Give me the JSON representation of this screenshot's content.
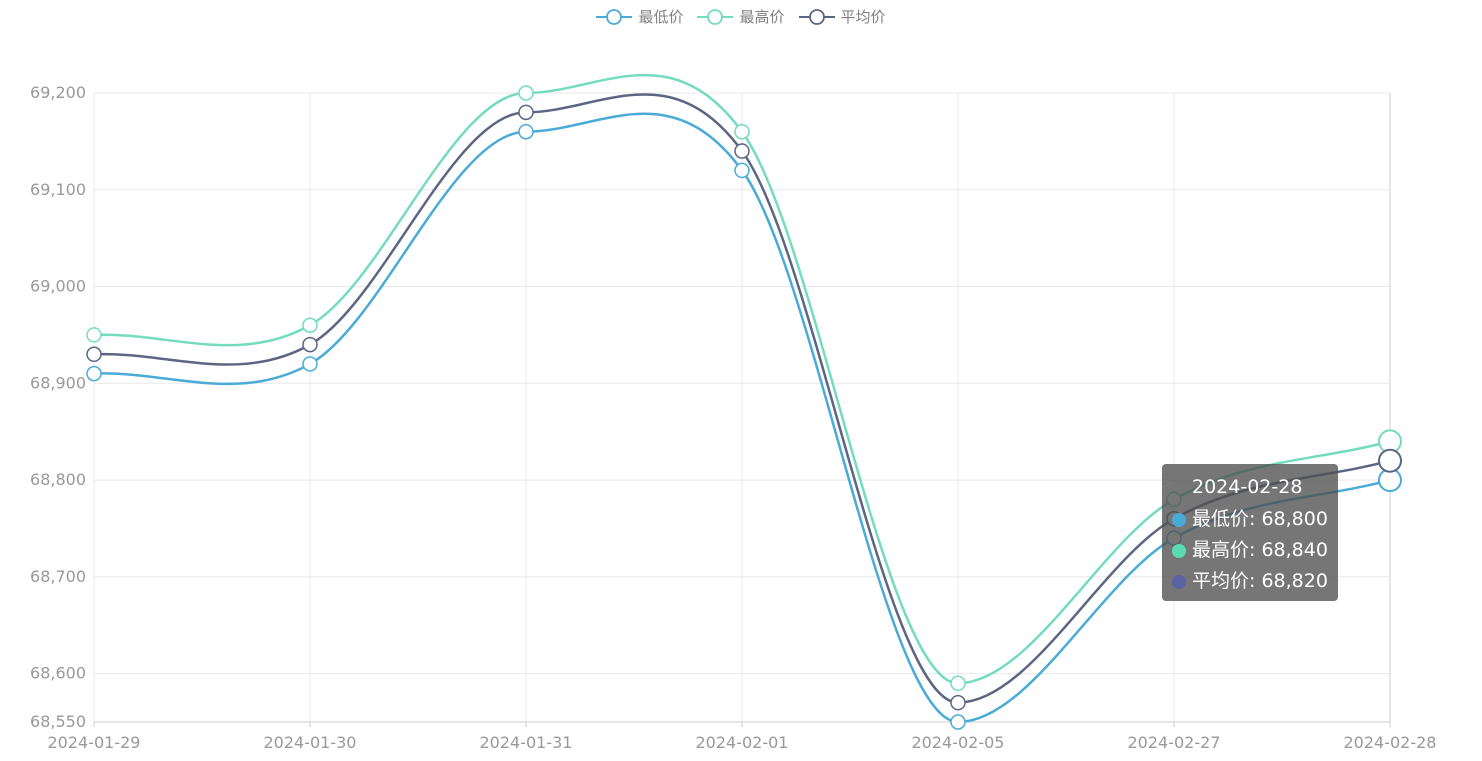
{
  "colors": {
    "low": "#4aabd6",
    "high": "#74dbbf",
    "avg": "#5d6584",
    "grid": "#e8e8e8",
    "axis_text": "#999999",
    "tooltip_low_dot": "#4aabd6",
    "tooltip_high_dot": "#5bdbb1",
    "tooltip_avg_dot": "#5b63a5"
  },
  "legend": [
    {
      "key": "low",
      "label": "最低价",
      "icon": "line-circle-icon"
    },
    {
      "key": "high",
      "label": "最高价",
      "icon": "line-circle-icon"
    },
    {
      "key": "avg",
      "label": "平均价",
      "icon": "line-circle-icon"
    }
  ],
  "tooltip": {
    "title": "2024-02-28",
    "rows": [
      {
        "key": "low",
        "text": "最低价: 68,800"
      },
      {
        "key": "high",
        "text": "最高价: 68,840"
      },
      {
        "key": "avg",
        "text": "平均价: 68,820"
      }
    ]
  },
  "chart_data": {
    "type": "line",
    "smooth": true,
    "categories": [
      "2024-01-29",
      "2024-01-30",
      "2024-01-31",
      "2024-02-01",
      "2024-02-05",
      "2024-02-27",
      "2024-02-28"
    ],
    "series": [
      {
        "key": "low",
        "name": "最低价",
        "values": [
          68910,
          68920,
          69160,
          69120,
          68550,
          68740,
          68800
        ]
      },
      {
        "key": "high",
        "name": "最高价",
        "values": [
          68950,
          68960,
          69200,
          69160,
          68590,
          68780,
          68840
        ]
      },
      {
        "key": "avg",
        "name": "平均价",
        "values": [
          68930,
          68940,
          69180,
          69140,
          68570,
          68760,
          68820
        ]
      }
    ],
    "ylim": [
      68550,
      69200
    ],
    "yticks": [
      {
        "value": 69200,
        "label": "69,200"
      },
      {
        "value": 69100,
        "label": "69,100"
      },
      {
        "value": 69000,
        "label": "69,000"
      },
      {
        "value": 68900,
        "label": "68,900"
      },
      {
        "value": 68800,
        "label": "68,800"
      },
      {
        "value": 68700,
        "label": "68,700"
      },
      {
        "value": 68600,
        "label": "68,600"
      },
      {
        "value": 68550,
        "label": "68,550"
      }
    ],
    "grid": true,
    "legend_position": "top-center",
    "highlighted_category": "2024-02-28"
  }
}
